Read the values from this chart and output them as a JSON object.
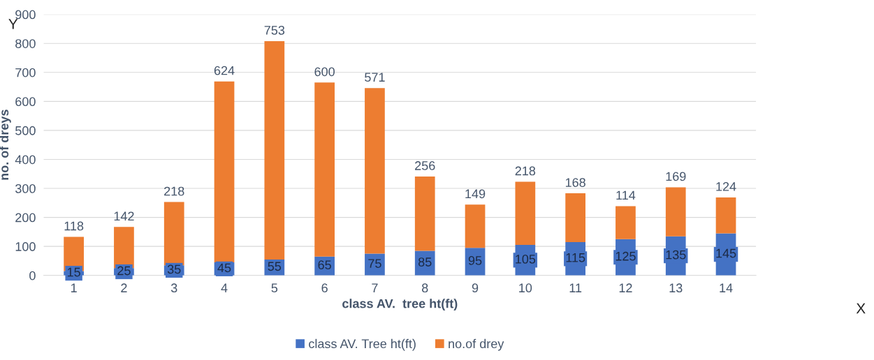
{
  "chart_data": {
    "type": "bar",
    "stacked": true,
    "xlabel": "class AV.  tree ht(ft)",
    "ylabel": "no. of dreys",
    "categories": [
      "1",
      "2",
      "3",
      "4",
      "5",
      "6",
      "7",
      "8",
      "9",
      "10",
      "11",
      "12",
      "13",
      "14"
    ],
    "series": [
      {
        "name": "class AV. Tree ht(ft)",
        "color": "#4472c4",
        "values": [
          15,
          25,
          35,
          45,
          55,
          65,
          75,
          85,
          95,
          105,
          115,
          125,
          135,
          145
        ]
      },
      {
        "name": "no.of drey",
        "color": "#ed7d31",
        "values": [
          118,
          142,
          218,
          624,
          753,
          600,
          571,
          256,
          149,
          218,
          168,
          114,
          169,
          124
        ]
      }
    ],
    "ylim": [
      0,
      900
    ],
    "yticks": [
      0,
      100,
      200,
      300,
      400,
      500,
      600,
      700,
      800,
      900
    ],
    "grid": "y",
    "legend": "bottom",
    "data_labels": true,
    "annotations": [
      "Y",
      "X"
    ]
  }
}
